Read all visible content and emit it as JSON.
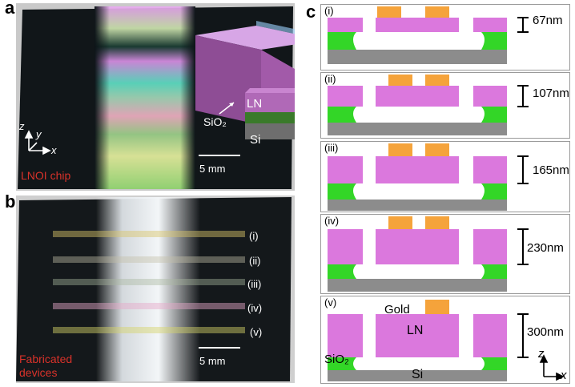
{
  "panel_a": {
    "letter": "a",
    "chip_label": "LNOI chip",
    "scale_label": "5 mm",
    "layers": {
      "top": "LN",
      "middle": "SiO₂",
      "bottom": "Si"
    },
    "axes": {
      "z": "z",
      "y": "y",
      "x": "x"
    }
  },
  "panel_b": {
    "letter": "b",
    "caption_line1": "Fabricated",
    "caption_line2": "devices",
    "scale_label": "5 mm",
    "rows": [
      "(i)",
      "(ii)",
      "(iii)",
      "(iv)",
      "(v)"
    ]
  },
  "panel_c": {
    "letter": "c",
    "cases": [
      {
        "label": "(i)",
        "thickness": "67nm"
      },
      {
        "label": "(ii)",
        "thickness": "107nm"
      },
      {
        "label": "(iii)",
        "thickness": "165nm"
      },
      {
        "label": "(iv)",
        "thickness": "230nm"
      },
      {
        "label": "(v)",
        "thickness": "300nm"
      }
    ],
    "material_labels": {
      "gold": "Gold",
      "ln": "LN",
      "sio2": "SiO₂",
      "si": "Si"
    },
    "axes": {
      "z": "z",
      "x": "x"
    }
  },
  "colors": {
    "ln": "#db78dd",
    "gold": "#f5a33b",
    "sio2": "#33d627",
    "si": "#8c8c8c",
    "accent_red": "#d8322a"
  }
}
